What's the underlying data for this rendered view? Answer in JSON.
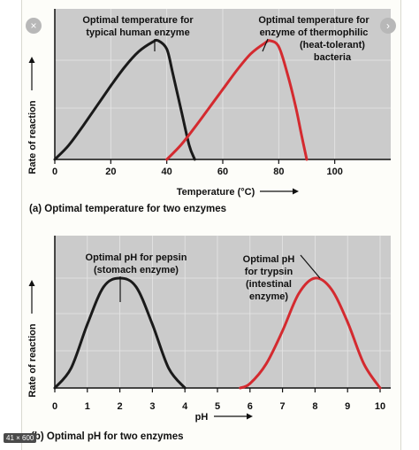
{
  "ui": {
    "close_glyph": "×",
    "next_glyph": "›",
    "size_badge": "41 × 600"
  },
  "colors": {
    "panel_bg": "#cbcbcb",
    "grid": "#e6e6e6",
    "human_curve": "#1a1a1a",
    "bacteria_curve": "#d42a2f",
    "axis": "#111111"
  },
  "chart_data": [
    {
      "type": "line",
      "title": "",
      "caption": "(a) Optimal temperature for two enzymes",
      "xlabel": "Temperature (°C)",
      "ylabel": "Rate of reaction",
      "xlim": [
        0,
        120
      ],
      "ylim": [
        0,
        1
      ],
      "xticks": [
        0,
        20,
        40,
        60,
        80,
        100
      ],
      "grid": true,
      "series": [
        {
          "key": "human",
          "x": [
            0,
            5,
            10,
            15,
            20,
            25,
            30,
            35,
            37,
            40,
            42,
            45,
            48,
            50
          ],
          "y": [
            0,
            0.12,
            0.28,
            0.45,
            0.62,
            0.78,
            0.91,
            0.99,
            1.0,
            0.93,
            0.74,
            0.43,
            0.12,
            0
          ]
        },
        {
          "key": "bacteria",
          "x": [
            40,
            45,
            50,
            55,
            60,
            65,
            70,
            75,
            77,
            80,
            83,
            86,
            88,
            90
          ],
          "y": [
            0,
            0.12,
            0.27,
            0.43,
            0.59,
            0.75,
            0.89,
            0.98,
            1.0,
            0.95,
            0.73,
            0.45,
            0.22,
            0
          ]
        }
      ],
      "annotations": [
        {
          "key": "human",
          "text": [
            "Optimal temperature for",
            "typical human enzyme"
          ],
          "x": 37
        },
        {
          "key": "bacteria",
          "text": [
            "Optimal temperature for",
            "enzyme of thermophilic",
            "(heat-tolerant)",
            "bacteria"
          ],
          "x": 77
        }
      ]
    },
    {
      "type": "line",
      "title": "",
      "caption": "(b) Optimal pH for two enzymes",
      "xlabel": "pH",
      "ylabel": "Rate of reaction",
      "xlim": [
        0,
        10
      ],
      "ylim": [
        0,
        1
      ],
      "xticks": [
        0,
        1,
        2,
        3,
        4,
        5,
        6,
        7,
        8,
        9,
        10
      ],
      "grid": true,
      "series": [
        {
          "key": "pepsin",
          "x": [
            0,
            0.5,
            1,
            1.5,
            2,
            2.5,
            3,
            3.5,
            4
          ],
          "y": [
            0,
            0.18,
            0.58,
            0.92,
            1.0,
            0.92,
            0.58,
            0.18,
            0
          ]
        },
        {
          "key": "trypsin",
          "x": [
            5.7,
            6,
            6.5,
            7,
            7.5,
            8,
            8.5,
            9,
            9.5,
            10
          ],
          "y": [
            0,
            0.04,
            0.22,
            0.52,
            0.86,
            1.0,
            0.9,
            0.6,
            0.22,
            0
          ]
        }
      ],
      "annotations": [
        {
          "key": "pepsin",
          "text": [
            "Optimal pH for pepsin",
            "(stomach enzyme)"
          ],
          "x": 2
        },
        {
          "key": "trypsin",
          "text": [
            "Optimal pH",
            "for trypsin",
            "(intestinal",
            "enzyme)"
          ],
          "x": 8
        }
      ]
    }
  ]
}
